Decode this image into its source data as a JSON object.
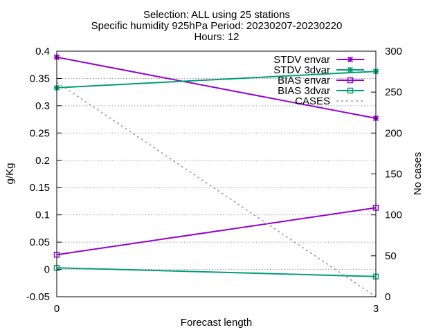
{
  "chart_data": {
    "type": "line",
    "title_lines": [
      "Selection: ALL using    25 stations",
      "Specific humidity 925hPa   Period: 20230207-20230220",
      "Hours: 12"
    ],
    "xlabel": "Forecast length",
    "ylabel": "g/Kg",
    "y2label": "No cases",
    "x": [
      0,
      3
    ],
    "xlim": [
      0,
      3
    ],
    "xticks": [
      "0",
      "3"
    ],
    "ylim": [
      -0.05,
      0.4
    ],
    "yticks": [
      "-0.05",
      "0",
      "0.05",
      "0.1",
      "0.15",
      "0.2",
      "0.25",
      "0.3",
      "0.35",
      "0.4"
    ],
    "y2lim": [
      0,
      300
    ],
    "y2ticks": [
      "0",
      "50",
      "100",
      "150",
      "200",
      "250",
      "300"
    ],
    "grid": "horizontal dotted",
    "legend_position": "top-right",
    "series": [
      {
        "name": "STDV envar",
        "values": [
          0.389,
          0.277
        ],
        "axis": "y",
        "color": "#9400d3",
        "marker": "star",
        "style": "solid"
      },
      {
        "name": "STDV 3dvar",
        "values": [
          0.333,
          0.363
        ],
        "axis": "y",
        "color": "#009e73",
        "marker": "star",
        "style": "solid"
      },
      {
        "name": "BIAS envar",
        "values": [
          0.027,
          0.113
        ],
        "axis": "y",
        "color": "#9400d3",
        "marker": "square",
        "style": "solid"
      },
      {
        "name": "BIAS 3dvar",
        "values": [
          0.003,
          -0.013
        ],
        "axis": "y",
        "color": "#009e73",
        "marker": "square",
        "style": "solid"
      },
      {
        "name": "CASES",
        "values": [
          262,
          0
        ],
        "axis": "y2",
        "color": "#999999",
        "marker": "none",
        "style": "dashed"
      }
    ]
  }
}
